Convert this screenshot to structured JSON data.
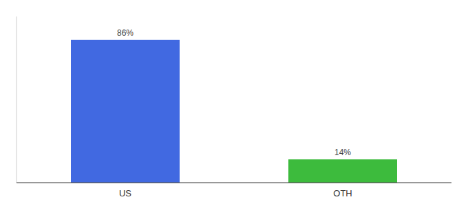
{
  "chart_data": {
    "type": "bar",
    "categories": [
      "US",
      "OTH"
    ],
    "values": [
      86,
      14
    ],
    "value_labels": [
      "86%",
      "14%"
    ],
    "colors": [
      "#4169e1",
      "#3dbb3d"
    ],
    "ylim": [
      0,
      100
    ],
    "data_labels": true,
    "tick_labels": "x",
    "grid": false
  }
}
